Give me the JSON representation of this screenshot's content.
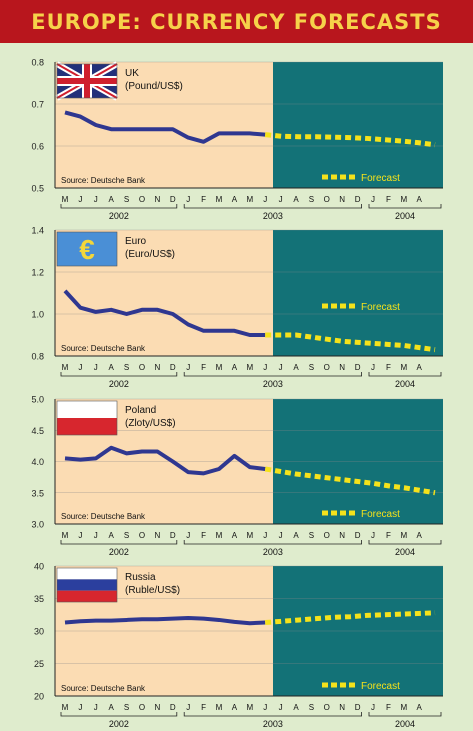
{
  "title": "EUROPE: CURRENCY FORECASTS",
  "colors": {
    "banner": "#b8161d",
    "banner_text": "#f6d24a",
    "history_bg": "#fbdcb3",
    "forecast_bg": "#137277",
    "history_line": "#2f3790",
    "forecast_line": "#f5e21b",
    "page_bg": "#dfeccd"
  },
  "chart_data": [
    {
      "type": "line",
      "flag": "uk-flag-icon",
      "name": "UK",
      "unit": "(Pound/US$)",
      "source": "Source: Deutsche Bank",
      "forecast_label": "Forecast",
      "ylim": [
        0.5,
        0.8
      ],
      "yticks": [
        "0.8",
        "0.7",
        "0.6",
        "0.5"
      ],
      "ytick_values": [
        0.8,
        0.7,
        0.6,
        0.5
      ],
      "months": [
        "M",
        "J",
        "J",
        "A",
        "S",
        "O",
        "N",
        "D",
        "J",
        "F",
        "M",
        "A",
        "M",
        "J",
        "J",
        "A",
        "S",
        "O",
        "N",
        "D",
        "J",
        "F",
        "M",
        "A"
      ],
      "years": [
        "2002",
        "2003",
        "2004"
      ],
      "history": [
        0.68,
        0.67,
        0.65,
        0.64,
        0.64,
        0.64,
        0.64,
        0.64,
        0.62,
        0.61,
        0.63,
        0.63,
        0.63,
        0.627
      ],
      "forecast": [
        0.627,
        0.623,
        0.622,
        0.622,
        0.621,
        0.62,
        0.618,
        0.615,
        0.612,
        0.608,
        0.603
      ]
    },
    {
      "type": "line",
      "flag": "euro-flag-icon",
      "name": "Euro",
      "unit": "(Euro/US$)",
      "source": "Source: Deutsche Bank",
      "forecast_label": "Forecast",
      "ylim": [
        0.8,
        1.4
      ],
      "yticks": [
        "1.4",
        "1.2",
        "1.0",
        "0.8"
      ],
      "ytick_values": [
        1.4,
        1.2,
        1.0,
        0.8
      ],
      "months": [
        "M",
        "J",
        "J",
        "A",
        "S",
        "O",
        "N",
        "D",
        "J",
        "F",
        "M",
        "A",
        "M",
        "J",
        "J",
        "A",
        "S",
        "O",
        "N",
        "D",
        "J",
        "F",
        "M",
        "A"
      ],
      "years": [
        "2002",
        "2003",
        "2004"
      ],
      "history": [
        1.11,
        1.03,
        1.01,
        1.02,
        1.0,
        1.02,
        1.02,
        1.0,
        0.95,
        0.92,
        0.92,
        0.92,
        0.9,
        0.9
      ],
      "forecast": [
        0.9,
        0.9,
        0.9,
        0.89,
        0.88,
        0.87,
        0.865,
        0.86,
        0.855,
        0.85,
        0.84,
        0.83
      ]
    },
    {
      "type": "line",
      "flag": "poland-flag-icon",
      "name": "Poland",
      "unit": "(Zloty/US$)",
      "source": "Source: Deutsche Bank",
      "forecast_label": "Forecast",
      "ylim": [
        3.0,
        5.0
      ],
      "yticks": [
        "5.0",
        "4.5",
        "4.0",
        "3.5",
        "3.0"
      ],
      "ytick_values": [
        5.0,
        4.5,
        4.0,
        3.5,
        3.0
      ],
      "months": [
        "M",
        "J",
        "J",
        "A",
        "S",
        "O",
        "N",
        "D",
        "J",
        "F",
        "M",
        "A",
        "M",
        "J",
        "J",
        "A",
        "S",
        "O",
        "N",
        "D",
        "J",
        "F",
        "M",
        "A"
      ],
      "years": [
        "2002",
        "2003",
        "2004"
      ],
      "history": [
        4.05,
        4.03,
        4.05,
        4.22,
        4.13,
        4.16,
        4.16,
        4.0,
        3.83,
        3.81,
        3.88,
        4.09,
        3.91,
        3.88
      ],
      "forecast": [
        3.88,
        3.84,
        3.8,
        3.77,
        3.74,
        3.71,
        3.68,
        3.65,
        3.61,
        3.58,
        3.54,
        3.5
      ]
    },
    {
      "type": "line",
      "flag": "russia-flag-icon",
      "name": "Russia",
      "unit": "(Ruble/US$)",
      "source": "Source: Deutsche Bank",
      "forecast_label": "Forecast",
      "ylim": [
        20,
        40
      ],
      "yticks": [
        "40",
        "35",
        "30",
        "25",
        "20"
      ],
      "ytick_values": [
        40,
        35,
        30,
        25,
        20
      ],
      "months": [
        "M",
        "J",
        "J",
        "A",
        "S",
        "O",
        "N",
        "D",
        "J",
        "F",
        "M",
        "A",
        "M",
        "J",
        "J",
        "A",
        "S",
        "O",
        "N",
        "D",
        "J",
        "F",
        "M",
        "A"
      ],
      "years": [
        "2002",
        "2003",
        "2004"
      ],
      "history": [
        31.3,
        31.5,
        31.6,
        31.6,
        31.7,
        31.8,
        31.8,
        31.9,
        32.0,
        31.9,
        31.7,
        31.4,
        31.2,
        31.3
      ],
      "forecast": [
        31.3,
        31.5,
        31.7,
        31.9,
        32.1,
        32.2,
        32.4,
        32.5,
        32.6,
        32.7,
        32.8
      ]
    }
  ]
}
